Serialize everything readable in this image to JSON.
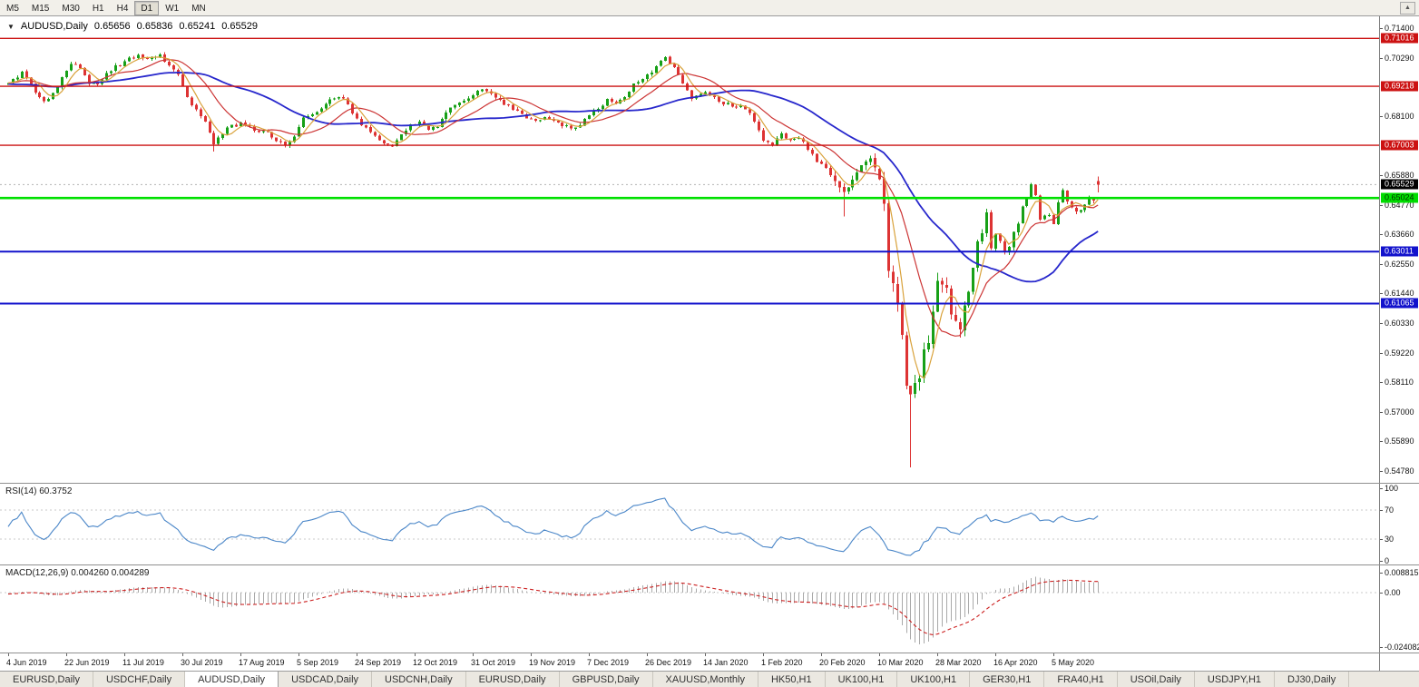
{
  "toolbar": {
    "timeframes": [
      "M5",
      "M15",
      "M30",
      "H1",
      "H4",
      "D1",
      "W1",
      "MN"
    ],
    "active": "D1"
  },
  "icons": {
    "symbol_dropdown": "▼",
    "toolbar_corner": "▲"
  },
  "chart": {
    "symbol_label": "AUDUSD,Daily",
    "ohlc": {
      "open": "0.65656",
      "high": "0.65836",
      "low": "0.65241",
      "close": "0.65529"
    },
    "current_price": "0.65529",
    "current_price_box": {
      "bg": "#000000",
      "fg": "#ffffff"
    }
  },
  "rsi": {
    "label": "RSI(14) 60.3752",
    "period": 14,
    "value": 60.3752,
    "ticks": [
      100,
      70,
      30,
      0
    ],
    "levels": [
      70,
      30
    ],
    "line_color": "#4a86c8"
  },
  "macd": {
    "label": "MACD(12,26,9) 0.004260 0.004289",
    "fast": 12,
    "slow": 26,
    "signal": 9,
    "value": 0.00426,
    "signal_value": 0.004289,
    "ticks": [
      "0.008815",
      "0.00",
      "-0.024082"
    ],
    "hist_color": "#a9a9a9",
    "signal_color": "#cc2020"
  },
  "tabs": {
    "items": [
      "EURUSD,Daily",
      "USDCHF,Daily",
      "AUDUSD,Daily",
      "USDCAD,Daily",
      "USDCNH,Daily",
      "EURUSD,Daily",
      "GBPUSD,Daily",
      "XAUUSD,Monthly",
      "HK50,H1",
      "UK100,H1",
      "UK100,H1",
      "GER30,H1",
      "FRA40,H1",
      "USOil,Daily",
      "USDJPY,H1",
      "DJ30,Daily"
    ],
    "active_index": 2
  },
  "chart_data": {
    "type": "candlestick",
    "symbol": "AUDUSD",
    "timeframe": "Daily",
    "bar_count": 245,
    "y_axis": {
      "price_top": 0.714,
      "price_bottom": 0.5478,
      "ticks": [
        "0.71400",
        "0.70290",
        "0.68100",
        "0.65880",
        "0.64770",
        "0.63660",
        "0.62550",
        "0.61440",
        "0.60330",
        "0.59220",
        "0.58110",
        "0.57000",
        "0.55890",
        "0.54780"
      ]
    },
    "x_labels": [
      {
        "text": "4 Jun 2019",
        "day": 0
      },
      {
        "text": "22 Jun 2019",
        "day": 13
      },
      {
        "text": "11 Jul 2019",
        "day": 26
      },
      {
        "text": "30 Jul 2019",
        "day": 39
      },
      {
        "text": "17 Aug 2019",
        "day": 52
      },
      {
        "text": "5 Sep 2019",
        "day": 65
      },
      {
        "text": "24 Sep 2019",
        "day": 78
      },
      {
        "text": "12 Oct 2019",
        "day": 91
      },
      {
        "text": "31 Oct 2019",
        "day": 104
      },
      {
        "text": "19 Nov 2019",
        "day": 117
      },
      {
        "text": "7 Dec 2019",
        "day": 130
      },
      {
        "text": "26 Dec 2019",
        "day": 143
      },
      {
        "text": "14 Jan 2020",
        "day": 156
      },
      {
        "text": "1 Feb 2020",
        "day": 169
      },
      {
        "text": "20 Feb 2020",
        "day": 182
      },
      {
        "text": "10 Mar 2020",
        "day": 195
      },
      {
        "text": "28 Mar 2020",
        "day": 208
      },
      {
        "text": "16 Apr 2020",
        "day": 221
      },
      {
        "text": "5 May 2020",
        "day": 234
      }
    ],
    "levels": [
      {
        "price": 0.71016,
        "label": "0.71016",
        "line_color": "#cc1212",
        "line_width": 1.4,
        "box_bg": "#cc1212",
        "box_fg": "#ffffff"
      },
      {
        "price": 0.69218,
        "label": "0.69218",
        "line_color": "#cc1212",
        "line_width": 1.4,
        "box_bg": "#cc1212",
        "box_fg": "#ffffff"
      },
      {
        "price": 0.67003,
        "label": "0.67003",
        "line_color": "#cc1212",
        "line_width": 1.4,
        "box_bg": "#cc1212",
        "box_fg": "#ffffff"
      },
      {
        "price": 0.65024,
        "label": "0.65024",
        "line_color": "#00e000",
        "line_width": 2.6,
        "box_bg": "#00dd00",
        "box_fg": "#003300"
      },
      {
        "price": 0.63011,
        "label": "0.63011",
        "line_color": "#1212cc",
        "line_width": 2.0,
        "box_bg": "#1212cc",
        "box_fg": "#ffffff"
      },
      {
        "price": 0.61065,
        "label": "0.61065",
        "line_color": "#1212cc",
        "line_width": 2.0,
        "box_bg": "#1212cc",
        "box_fg": "#ffffff"
      }
    ],
    "style": {
      "up": "#17a017",
      "down": "#dd3333",
      "ma_fast": "#d9a23b",
      "ma_mid": "#cc3434",
      "ma_slow": "#2727cc",
      "bid_line": "#b4b4b4"
    },
    "ma_periods": {
      "fast": 5,
      "mid": 13,
      "slow": 34
    },
    "prehistory_anchors": [
      [
        -40,
        0.701
      ],
      [
        -32,
        0.6975
      ],
      [
        -24,
        0.692
      ],
      [
        -16,
        0.6895
      ],
      [
        -8,
        0.694
      ],
      [
        -1,
        0.693
      ]
    ],
    "close_anchors": [
      [
        0,
        0.6935
      ],
      [
        3,
        0.6975
      ],
      [
        6,
        0.69
      ],
      [
        8,
        0.6865
      ],
      [
        10,
        0.689
      ],
      [
        12,
        0.696
      ],
      [
        14,
        0.7005
      ],
      [
        16,
        0.699
      ],
      [
        18,
        0.6935
      ],
      [
        20,
        0.6925
      ],
      [
        23,
        0.6985
      ],
      [
        26,
        0.7015
      ],
      [
        29,
        0.704
      ],
      [
        32,
        0.7025
      ],
      [
        34,
        0.704
      ],
      [
        36,
        0.7
      ],
      [
        38,
        0.696
      ],
      [
        40,
        0.688
      ],
      [
        42,
        0.683
      ],
      [
        44,
        0.679
      ],
      [
        46,
        0.671
      ],
      [
        48,
        0.6745
      ],
      [
        50,
        0.6775
      ],
      [
        52,
        0.678
      ],
      [
        55,
        0.676
      ],
      [
        58,
        0.6745
      ],
      [
        60,
        0.672
      ],
      [
        62,
        0.67
      ],
      [
        64,
        0.674
      ],
      [
        66,
        0.68
      ],
      [
        69,
        0.683
      ],
      [
        72,
        0.687
      ],
      [
        74,
        0.6885
      ],
      [
        76,
        0.6855
      ],
      [
        78,
        0.6795
      ],
      [
        80,
        0.6765
      ],
      [
        82,
        0.674
      ],
      [
        84,
        0.671
      ],
      [
        86,
        0.67
      ],
      [
        88,
        0.674
      ],
      [
        90,
        0.6775
      ],
      [
        92,
        0.679
      ],
      [
        94,
        0.676
      ],
      [
        96,
        0.6775
      ],
      [
        98,
        0.682
      ],
      [
        100,
        0.685
      ],
      [
        102,
        0.6865
      ],
      [
        104,
        0.689
      ],
      [
        106,
        0.691
      ],
      [
        108,
        0.689
      ],
      [
        110,
        0.6865
      ],
      [
        112,
        0.685
      ],
      [
        114,
        0.6825
      ],
      [
        116,
        0.68
      ],
      [
        118,
        0.679
      ],
      [
        120,
        0.681
      ],
      [
        122,
        0.6795
      ],
      [
        124,
        0.6775
      ],
      [
        126,
        0.6765
      ],
      [
        128,
        0.678
      ],
      [
        130,
        0.6815
      ],
      [
        132,
        0.6835
      ],
      [
        134,
        0.687
      ],
      [
        136,
        0.686
      ],
      [
        138,
        0.6885
      ],
      [
        140,
        0.6925
      ],
      [
        142,
        0.695
      ],
      [
        144,
        0.698
      ],
      [
        146,
        0.701
      ],
      [
        147,
        0.7025
      ],
      [
        149,
        0.699
      ],
      [
        151,
        0.6935
      ],
      [
        153,
        0.688
      ],
      [
        155,
        0.69
      ],
      [
        157,
        0.689
      ],
      [
        159,
        0.6865
      ],
      [
        161,
        0.6855
      ],
      [
        163,
        0.685
      ],
      [
        165,
        0.684
      ],
      [
        167,
        0.6795
      ],
      [
        169,
        0.672
      ],
      [
        171,
        0.6705
      ],
      [
        173,
        0.6745
      ],
      [
        175,
        0.672
      ],
      [
        177,
        0.6725
      ],
      [
        179,
        0.669
      ],
      [
        181,
        0.664
      ],
      [
        183,
        0.6615
      ],
      [
        185,
        0.656
      ],
      [
        187,
        0.6515
      ],
      [
        189,
        0.658
      ],
      [
        191,
        0.663
      ],
      [
        193,
        0.6635
      ],
      [
        195,
        0.658
      ],
      [
        196,
        0.649
      ],
      [
        197,
        0.623
      ],
      [
        198,
        0.6185
      ],
      [
        199,
        0.612
      ],
      [
        200,
        0.5995
      ],
      [
        201,
        0.5785
      ],
      [
        202,
        0.5745
      ],
      [
        203,
        0.5805
      ],
      [
        204,
        0.5835
      ],
      [
        205,
        0.596
      ],
      [
        206,
        0.5965
      ],
      [
        207,
        0.606
      ],
      [
        208,
        0.6165
      ],
      [
        209,
        0.617
      ],
      [
        210,
        0.614
      ],
      [
        211,
        0.609
      ],
      [
        212,
        0.6055
      ],
      [
        213,
        0.5995
      ],
      [
        214,
        0.609
      ],
      [
        215,
        0.616
      ],
      [
        216,
        0.623
      ],
      [
        217,
        0.6335
      ],
      [
        218,
        0.638
      ],
      [
        219,
        0.644
      ],
      [
        220,
        0.6325
      ],
      [
        221,
        0.636
      ],
      [
        222,
        0.6355
      ],
      [
        223,
        0.6295
      ],
      [
        224,
        0.632
      ],
      [
        225,
        0.637
      ],
      [
        226,
        0.6395
      ],
      [
        227,
        0.646
      ],
      [
        228,
        0.649
      ],
      [
        229,
        0.655
      ],
      [
        230,
        0.6515
      ],
      [
        231,
        0.6415
      ],
      [
        232,
        0.643
      ],
      [
        233,
        0.644
      ],
      [
        234,
        0.6405
      ],
      [
        235,
        0.649
      ],
      [
        236,
        0.653
      ],
      [
        237,
        0.6485
      ],
      [
        238,
        0.647
      ],
      [
        239,
        0.645
      ],
      [
        240,
        0.6465
      ],
      [
        241,
        0.6485
      ],
      [
        242,
        0.651
      ],
      [
        243,
        0.65
      ],
      [
        244,
        0.65529
      ]
    ],
    "volatility_windows": [
      [
        -40,
        184,
        0.0016
      ],
      [
        185,
        194,
        0.0035
      ],
      [
        195,
        214,
        0.006
      ],
      [
        215,
        228,
        0.003
      ],
      [
        229,
        244,
        0.0018
      ]
    ],
    "overrides": {
      "46": {
        "low": 0.6677
      },
      "187": {
        "low": 0.6434
      },
      "202": {
        "low": 0.5492
      },
      "244": {
        "open": 0.65656,
        "high": 0.65836,
        "low": 0.65241,
        "close": 0.65529
      }
    },
    "indicators": [
      {
        "name": "RSI",
        "period": 14,
        "current": 60.3752
      },
      {
        "name": "MACD",
        "fast": 12,
        "slow": 26,
        "signal": 9,
        "current": [
          0.00426,
          0.004289
        ]
      }
    ]
  }
}
